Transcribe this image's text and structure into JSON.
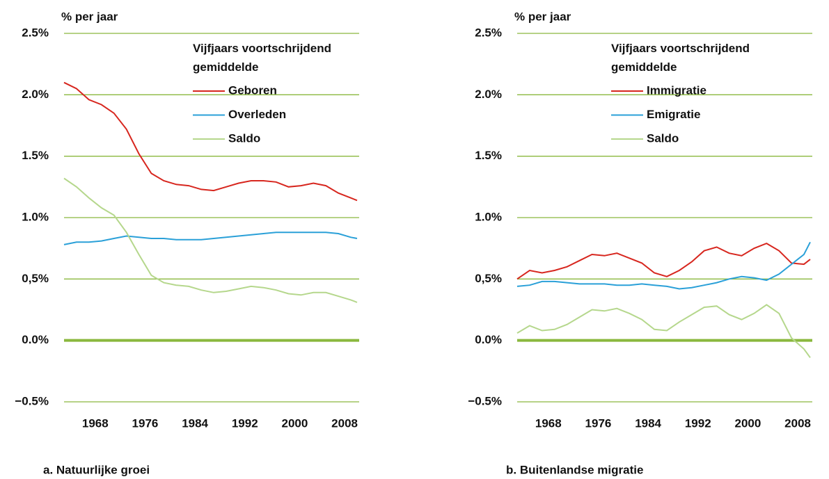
{
  "chart_data": [
    {
      "type": "line",
      "title": "a. Natuurlijke groei",
      "y_label": "% per jaar",
      "legend_title": "Vijfjaars voortschrijdend gemiddelde",
      "x": [
        1963,
        1965,
        1967,
        1969,
        1971,
        1973,
        1975,
        1977,
        1979,
        1981,
        1983,
        1985,
        1987,
        1989,
        1991,
        1993,
        1995,
        1997,
        1999,
        2001,
        2003,
        2005,
        2007,
        2009,
        2010
      ],
      "series": [
        {
          "name": "Geboren",
          "color": "#d7261e",
          "values": [
            2.1,
            2.05,
            1.96,
            1.92,
            1.85,
            1.72,
            1.52,
            1.36,
            1.3,
            1.27,
            1.26,
            1.23,
            1.22,
            1.25,
            1.28,
            1.3,
            1.3,
            1.29,
            1.25,
            1.26,
            1.28,
            1.26,
            1.2,
            1.16,
            1.14
          ]
        },
        {
          "name": "Overleden",
          "color": "#2aa0d8",
          "values": [
            0.78,
            0.8,
            0.8,
            0.81,
            0.83,
            0.85,
            0.84,
            0.83,
            0.83,
            0.82,
            0.82,
            0.82,
            0.83,
            0.84,
            0.85,
            0.86,
            0.87,
            0.88,
            0.88,
            0.88,
            0.88,
            0.88,
            0.87,
            0.84,
            0.83
          ]
        },
        {
          "name": "Saldo",
          "color": "#b5d78c",
          "values": [
            1.32,
            1.25,
            1.16,
            1.08,
            1.02,
            0.88,
            0.7,
            0.53,
            0.47,
            0.45,
            0.44,
            0.41,
            0.39,
            0.4,
            0.42,
            0.44,
            0.43,
            0.41,
            0.38,
            0.37,
            0.39,
            0.39,
            0.36,
            0.33,
            0.31
          ]
        }
      ],
      "xlim": [
        1963,
        2010
      ],
      "xticks": [
        1968,
        1976,
        1984,
        1992,
        2000,
        2008
      ],
      "ylim": [
        -0.5,
        2.5
      ],
      "yticks": [
        {
          "value": -0.5,
          "label": "−0.5%"
        },
        {
          "value": 0,
          "label": "0.0%"
        },
        {
          "value": 0.5,
          "label": "0,5%"
        },
        {
          "value": 1,
          "label": "1.0%"
        },
        {
          "value": 1.5,
          "label": "1.5%"
        },
        {
          "value": 2,
          "label": "2.0%"
        },
        {
          "value": 2.5,
          "label": "2.5%"
        }
      ],
      "grid": true,
      "grid_color": "#8ab83e"
    },
    {
      "type": "line",
      "title": "b. Buitenlandse migratie",
      "y_label": "% per jaar",
      "legend_title": "Vijfjaars voortschrijdend gemiddelde",
      "x": [
        1963,
        1965,
        1967,
        1969,
        1971,
        1973,
        1975,
        1977,
        1979,
        1981,
        1983,
        1985,
        1987,
        1989,
        1991,
        1993,
        1995,
        1997,
        1999,
        2001,
        2003,
        2005,
        2007,
        2009,
        2010
      ],
      "series": [
        {
          "name": "Immigratie",
          "color": "#d7261e",
          "values": [
            0.5,
            0.57,
            0.55,
            0.57,
            0.6,
            0.65,
            0.7,
            0.69,
            0.71,
            0.67,
            0.63,
            0.55,
            0.52,
            0.57,
            0.64,
            0.73,
            0.76,
            0.71,
            0.69,
            0.75,
            0.79,
            0.73,
            0.63,
            0.62,
            0.66
          ]
        },
        {
          "name": "Emigratie",
          "color": "#2aa0d8",
          "values": [
            0.44,
            0.45,
            0.48,
            0.48,
            0.47,
            0.46,
            0.46,
            0.46,
            0.45,
            0.45,
            0.46,
            0.45,
            0.44,
            0.42,
            0.43,
            0.45,
            0.47,
            0.5,
            0.52,
            0.51,
            0.49,
            0.54,
            0.62,
            0.7,
            0.8
          ]
        },
        {
          "name": "Saldo",
          "color": "#b5d78c",
          "values": [
            0.06,
            0.12,
            0.08,
            0.09,
            0.13,
            0.19,
            0.25,
            0.24,
            0.26,
            0.22,
            0.17,
            0.09,
            0.08,
            0.15,
            0.21,
            0.27,
            0.28,
            0.21,
            0.17,
            0.22,
            0.29,
            0.22,
            0.02,
            -0.07,
            -0.14
          ]
        }
      ],
      "xlim": [
        1963,
        2010
      ],
      "xticks": [
        1968,
        1976,
        1984,
        1992,
        2000,
        2008
      ],
      "ylim": [
        -0.5,
        2.5
      ],
      "yticks": [
        {
          "value": -0.5,
          "label": "−0.5%"
        },
        {
          "value": 0,
          "label": "0.0%"
        },
        {
          "value": 0.5,
          "label": "0,5%"
        },
        {
          "value": 1,
          "label": "1.0%"
        },
        {
          "value": 1.5,
          "label": "1.5%"
        },
        {
          "value": 2,
          "label": "2.0%"
        },
        {
          "value": 2.5,
          "label": "2.5%"
        }
      ],
      "grid": true,
      "grid_color": "#8ab83e"
    }
  ]
}
